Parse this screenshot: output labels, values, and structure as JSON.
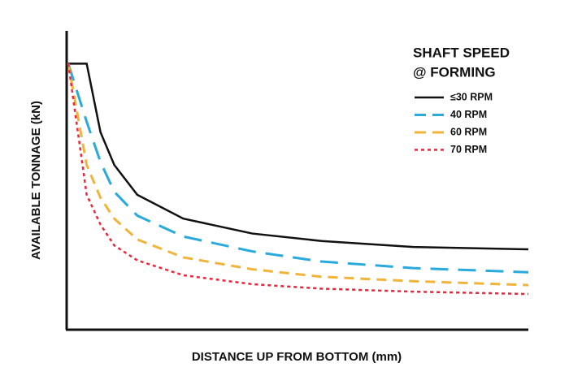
{
  "chart_data": {
    "type": "line",
    "x_label": "DISTANCE UP FROM BOTTOM (mm)",
    "y_label": "AVAILABLE TONNAGE (kN)",
    "legend_title": [
      "SHAFT SPEED",
      "@ FORMING"
    ],
    "legend": "upper right",
    "xlim": [
      0,
      100
    ],
    "ylim": [
      0,
      100
    ],
    "x": [
      0,
      4,
      7,
      10,
      15,
      25,
      40,
      55,
      75,
      100
    ],
    "series": [
      {
        "name": "≤30 RPM",
        "color": "#111111",
        "linestyle": "solid",
        "values": [
          89,
          89,
          66,
          55,
          45,
          37,
          32,
          29.5,
          27.5,
          26.7
        ]
      },
      {
        "name": "40 RPM",
        "color": "#29a9dc",
        "linestyle": "dashed",
        "values": [
          89,
          69.5,
          56,
          46,
          38,
          31,
          26,
          22.6,
          20.4,
          19
        ]
      },
      {
        "name": "60 RPM",
        "color": "#f0b43a",
        "linestyle": "dashdot",
        "values": [
          89,
          55,
          44,
          37,
          30,
          24,
          20,
          17.5,
          16,
          14.7
        ]
      },
      {
        "name": "70 RPM",
        "color": "#e8283c",
        "linestyle": "dotted",
        "values": [
          89,
          45,
          35,
          28,
          23,
          18,
          15,
          13.5,
          12.5,
          11.7
        ]
      }
    ]
  }
}
